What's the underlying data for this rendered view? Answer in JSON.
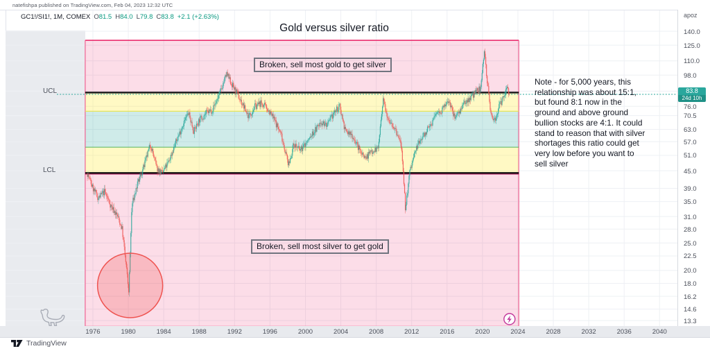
{
  "attribution": "natefishpa published on TradingView.com, Feb 04, 2023 12:32 UTC",
  "symbol_row": {
    "symbol": "GC1!/SI1!, 1M, COMEX",
    "ohlc": [
      {
        "label": "O",
        "value": "81.5"
      },
      {
        "label": "H",
        "value": "84.0"
      },
      {
        "label": "L",
        "value": "79.8"
      },
      {
        "label": "C",
        "value": "83.8"
      }
    ],
    "change": "+2.1 (+2.63%)"
  },
  "title": "Gold versus silver ratio",
  "annotations": {
    "ucl_label": "UCL",
    "lcl_label": "LCL",
    "box_top": "Broken, sell most gold to get silver",
    "box_bottom": "Broken, sell most silver to get gold",
    "note_lines": [
      "Note - for 5,000 years, this",
      "relationship was about 15:1,",
      "but found 8:1 now in the",
      "ground and above ground",
      "bullion stocks are 4:1. It could",
      "stand to reason that with silver",
      "shortages this ratio could get",
      "very low before you want to",
      "sell silver"
    ]
  },
  "price_scale": {
    "unit": "apoz",
    "ticks": [
      "140.0",
      "125.0",
      "110.0",
      "98.0",
      "86.0",
      "76.0",
      "70.5",
      "63.0",
      "57.0",
      "51.0",
      "45.0",
      "39.0",
      "35.0",
      "31.0",
      "28.0",
      "25.0",
      "22.5",
      "20.0",
      "18.0",
      "16.2",
      "14.6",
      "13.3"
    ],
    "badge_price": "83.8",
    "badge_countdown": "24d 10h"
  },
  "time_scale": {
    "years": [
      "1976",
      "1980",
      "1984",
      "1988",
      "1992",
      "1996",
      "2000",
      "2004",
      "2008",
      "2012",
      "2016",
      "2020",
      "2024",
      "2028",
      "2032",
      "2036",
      "2040"
    ]
  },
  "footer": {
    "brand": "TradingView"
  },
  "colors": {
    "up": "#26a69a",
    "down": "#ef5350",
    "accent": "#26a69a",
    "band_pink": "rgba(233,30,99,0.15)",
    "band_yellow": "rgba(255,235,59,0.30)",
    "band_teal": "rgba(38,166,154,0.22)",
    "pink_border": "#e91e63",
    "pink_border_soft": "#f06292",
    "limit_line": "#141414",
    "maroon_line": "#ad1457",
    "yellow_line": "#e6e45a",
    "green_line": "#66bb6a",
    "circle": "#ef5350",
    "marker_purple": "#c2379b",
    "grid": "#eef0f4",
    "pane_gray": "#e9ebef"
  },
  "chart_data": {
    "type": "candlestick",
    "title": "Gold versus silver ratio",
    "series_name": "GC1!/SI1! gold/silver ratio, monthly (COMEX)",
    "y_scale": "log",
    "y_ticks": [
      140.0,
      125.0,
      110.0,
      98.0,
      86.0,
      76.0,
      70.5,
      63.0,
      57.0,
      51.0,
      45.0,
      39.0,
      35.0,
      31.0,
      28.0,
      25.0,
      22.5,
      20.0,
      18.0,
      16.2,
      14.6,
      13.3
    ],
    "x_axis_years": [
      1976,
      1980,
      1984,
      1988,
      1992,
      1996,
      2000,
      2004,
      2008,
      2012,
      2016,
      2020,
      2024,
      2028,
      2032,
      2036,
      2040
    ],
    "x_domain_years": [
      1975.37,
      2023.05
    ],
    "last_price": 83.8,
    "last_change": "+2.1 (+2.63%)",
    "control_bands": {
      "region_years": [
        1975.13,
        2024.1
      ],
      "region_price_top": 130,
      "region_price_bottom": 12.7,
      "ucl": 85,
      "lcl": 44.2,
      "upper_yellow": [
        73,
        85
      ],
      "teal": [
        54.5,
        73
      ],
      "lower_yellow": [
        44.2,
        54.5
      ]
    },
    "highlight_circle": {
      "center_year": 1980.2,
      "center_price": 17.7,
      "meaning": "1980 ratio low"
    },
    "ratio_anchors": [
      [
        1975.37,
        44
      ],
      [
        1976,
        39
      ],
      [
        1976.6,
        36
      ],
      [
        1977.3,
        38
      ],
      [
        1978,
        34
      ],
      [
        1978.8,
        31
      ],
      [
        1979.3,
        28
      ],
      [
        1979.8,
        20
      ],
      [
        1980.05,
        16.8
      ],
      [
        1980.4,
        34
      ],
      [
        1981,
        40
      ],
      [
        1981.8,
        47
      ],
      [
        1982.5,
        56
      ],
      [
        1983.2,
        46
      ],
      [
        1983.8,
        44
      ],
      [
        1984.5,
        48
      ],
      [
        1985.3,
        56
      ],
      [
        1986.2,
        66
      ],
      [
        1986.8,
        72
      ],
      [
        1987.4,
        62
      ],
      [
        1988,
        68
      ],
      [
        1988.8,
        72
      ],
      [
        1989.5,
        74
      ],
      [
        1990.3,
        84
      ],
      [
        1991.1,
        99
      ],
      [
        1991.6,
        92
      ],
      [
        1992.3,
        84
      ],
      [
        1993,
        76
      ],
      [
        1993.6,
        70
      ],
      [
        1994.3,
        76
      ],
      [
        1995,
        78
      ],
      [
        1995.8,
        74
      ],
      [
        1996.5,
        68
      ],
      [
        1997.3,
        60
      ],
      [
        1998.1,
        47
      ],
      [
        1998.7,
        56
      ],
      [
        1999.4,
        53
      ],
      [
        2000.2,
        57
      ],
      [
        2001,
        62
      ],
      [
        2001.8,
        67
      ],
      [
        2002.5,
        65
      ],
      [
        2003.2,
        72
      ],
      [
        2003.9,
        76
      ],
      [
        2004.5,
        62
      ],
      [
        2005.3,
        60
      ],
      [
        2006,
        54
      ],
      [
        2006.8,
        50
      ],
      [
        2007.5,
        53
      ],
      [
        2008.2,
        54
      ],
      [
        2008.8,
        80
      ],
      [
        2009.3,
        70
      ],
      [
        2010,
        64
      ],
      [
        2010.8,
        56
      ],
      [
        2011.3,
        33
      ],
      [
        2011.8,
        45
      ],
      [
        2012.5,
        54
      ],
      [
        2013.3,
        60
      ],
      [
        2014,
        64
      ],
      [
        2014.8,
        72
      ],
      [
        2015.5,
        74
      ],
      [
        2016.2,
        80
      ],
      [
        2016.8,
        70
      ],
      [
        2017.5,
        74
      ],
      [
        2018.3,
        80
      ],
      [
        2019,
        84
      ],
      [
        2019.8,
        88
      ],
      [
        2020.2,
        121
      ],
      [
        2020.5,
        96
      ],
      [
        2020.9,
        72
      ],
      [
        2021.4,
        68
      ],
      [
        2021.9,
        76
      ],
      [
        2022.4,
        82
      ],
      [
        2022.8,
        90
      ],
      [
        2023.05,
        83.8
      ]
    ]
  }
}
